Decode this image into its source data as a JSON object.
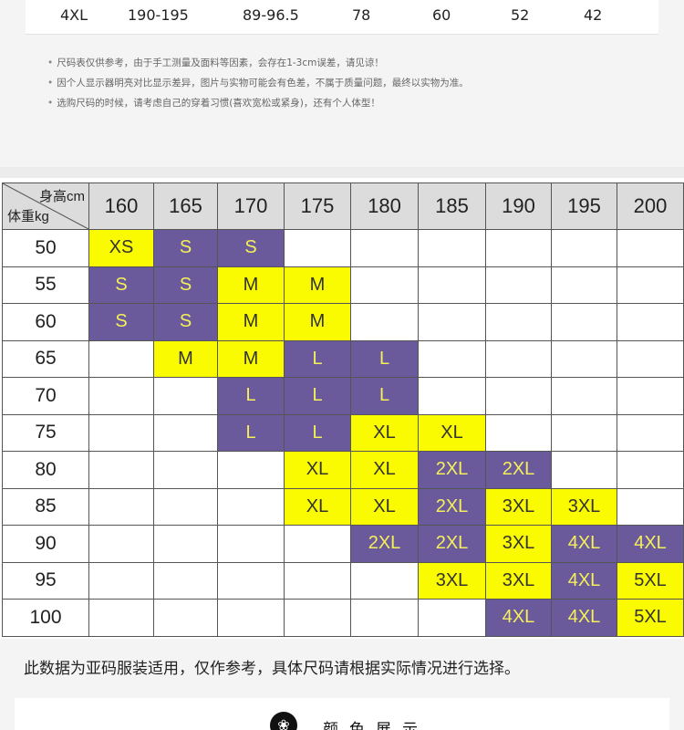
{
  "top_row": [
    "4XL",
    "190-195",
    "89-96.5",
    "78",
    "60",
    "52",
    "42"
  ],
  "notes": [
    "尺码表仅供参考，由于手工测量及面料等因素，会存在1-3cm误差，请见谅！",
    "因个人显示器明亮对比显示差异，图片与实物可能会有色差，不属于质量问题，最终以实物为准。",
    "选购尺码的时候，请考虑自己的穿着习惯(喜欢宽松或紧身)，还有个人体型！"
  ],
  "grid": {
    "corner_height_label": "身高cm",
    "corner_weight_label": "体重kg",
    "heights": [
      "160",
      "165",
      "170",
      "175",
      "180",
      "185",
      "190",
      "195",
      "200"
    ],
    "rows": [
      {
        "weight": "50",
        "cells": [
          {
            "v": "XS",
            "c": "y"
          },
          {
            "v": "S",
            "c": "p"
          },
          {
            "v": "S",
            "c": "p"
          },
          {
            "v": "",
            "c": ""
          },
          {
            "v": "",
            "c": ""
          },
          {
            "v": "",
            "c": ""
          },
          {
            "v": "",
            "c": ""
          },
          {
            "v": "",
            "c": ""
          },
          {
            "v": "",
            "c": ""
          }
        ]
      },
      {
        "weight": "55",
        "cells": [
          {
            "v": "S",
            "c": "p"
          },
          {
            "v": "S",
            "c": "p"
          },
          {
            "v": "M",
            "c": "y"
          },
          {
            "v": "M",
            "c": "y"
          },
          {
            "v": "",
            "c": ""
          },
          {
            "v": "",
            "c": ""
          },
          {
            "v": "",
            "c": ""
          },
          {
            "v": "",
            "c": ""
          },
          {
            "v": "",
            "c": ""
          }
        ]
      },
      {
        "weight": "60",
        "cells": [
          {
            "v": "S",
            "c": "p"
          },
          {
            "v": "S",
            "c": "p"
          },
          {
            "v": "M",
            "c": "y"
          },
          {
            "v": "M",
            "c": "y"
          },
          {
            "v": "",
            "c": ""
          },
          {
            "v": "",
            "c": ""
          },
          {
            "v": "",
            "c": ""
          },
          {
            "v": "",
            "c": ""
          },
          {
            "v": "",
            "c": ""
          }
        ]
      },
      {
        "weight": "65",
        "cells": [
          {
            "v": "",
            "c": ""
          },
          {
            "v": "M",
            "c": "y"
          },
          {
            "v": "M",
            "c": "y"
          },
          {
            "v": "L",
            "c": "p"
          },
          {
            "v": "L",
            "c": "p"
          },
          {
            "v": "",
            "c": ""
          },
          {
            "v": "",
            "c": ""
          },
          {
            "v": "",
            "c": ""
          },
          {
            "v": "",
            "c": ""
          }
        ]
      },
      {
        "weight": "70",
        "cells": [
          {
            "v": "",
            "c": ""
          },
          {
            "v": "",
            "c": ""
          },
          {
            "v": "L",
            "c": "p"
          },
          {
            "v": "L",
            "c": "p"
          },
          {
            "v": "L",
            "c": "p"
          },
          {
            "v": "",
            "c": ""
          },
          {
            "v": "",
            "c": ""
          },
          {
            "v": "",
            "c": ""
          },
          {
            "v": "",
            "c": ""
          }
        ]
      },
      {
        "weight": "75",
        "cells": [
          {
            "v": "",
            "c": ""
          },
          {
            "v": "",
            "c": ""
          },
          {
            "v": "L",
            "c": "p"
          },
          {
            "v": "L",
            "c": "p"
          },
          {
            "v": "XL",
            "c": "y"
          },
          {
            "v": "XL",
            "c": "y"
          },
          {
            "v": "",
            "c": ""
          },
          {
            "v": "",
            "c": ""
          },
          {
            "v": "",
            "c": ""
          }
        ]
      },
      {
        "weight": "80",
        "cells": [
          {
            "v": "",
            "c": ""
          },
          {
            "v": "",
            "c": ""
          },
          {
            "v": "",
            "c": ""
          },
          {
            "v": "XL",
            "c": "y"
          },
          {
            "v": "XL",
            "c": "y"
          },
          {
            "v": "2XL",
            "c": "p"
          },
          {
            "v": "2XL",
            "c": "p"
          },
          {
            "v": "",
            "c": ""
          },
          {
            "v": "",
            "c": ""
          }
        ]
      },
      {
        "weight": "85",
        "cells": [
          {
            "v": "",
            "c": ""
          },
          {
            "v": "",
            "c": ""
          },
          {
            "v": "",
            "c": ""
          },
          {
            "v": "XL",
            "c": "y"
          },
          {
            "v": "XL",
            "c": "y"
          },
          {
            "v": "2XL",
            "c": "p"
          },
          {
            "v": "3XL",
            "c": "y"
          },
          {
            "v": "3XL",
            "c": "y"
          },
          {
            "v": "",
            "c": ""
          }
        ]
      },
      {
        "weight": "90",
        "cells": [
          {
            "v": "",
            "c": ""
          },
          {
            "v": "",
            "c": ""
          },
          {
            "v": "",
            "c": ""
          },
          {
            "v": "",
            "c": ""
          },
          {
            "v": "2XL",
            "c": "p"
          },
          {
            "v": "2XL",
            "c": "p"
          },
          {
            "v": "3XL",
            "c": "y"
          },
          {
            "v": "4XL",
            "c": "p"
          },
          {
            "v": "4XL",
            "c": "p"
          }
        ]
      },
      {
        "weight": "95",
        "cells": [
          {
            "v": "",
            "c": ""
          },
          {
            "v": "",
            "c": ""
          },
          {
            "v": "",
            "c": ""
          },
          {
            "v": "",
            "c": ""
          },
          {
            "v": "",
            "c": ""
          },
          {
            "v": "3XL",
            "c": "y"
          },
          {
            "v": "3XL",
            "c": "y"
          },
          {
            "v": "4XL",
            "c": "p"
          },
          {
            "v": "5XL",
            "c": "y"
          }
        ]
      },
      {
        "weight": "100",
        "cells": [
          {
            "v": "",
            "c": ""
          },
          {
            "v": "",
            "c": ""
          },
          {
            "v": "",
            "c": ""
          },
          {
            "v": "",
            "c": ""
          },
          {
            "v": "",
            "c": ""
          },
          {
            "v": "",
            "c": ""
          },
          {
            "v": "4XL",
            "c": "p"
          },
          {
            "v": "4XL",
            "c": "p"
          },
          {
            "v": "5XL",
            "c": "y"
          }
        ]
      }
    ]
  },
  "footer_note": "此数据为亚码服装适用，仅作参考，具体尺码请根据实际情况进行选择。",
  "section_title": "颜色展示",
  "section_icon": "paw-icon",
  "colors": {
    "yellow": "#fafa00",
    "purple": "#6a5a9c",
    "purple_text": "#f5ef5a"
  }
}
